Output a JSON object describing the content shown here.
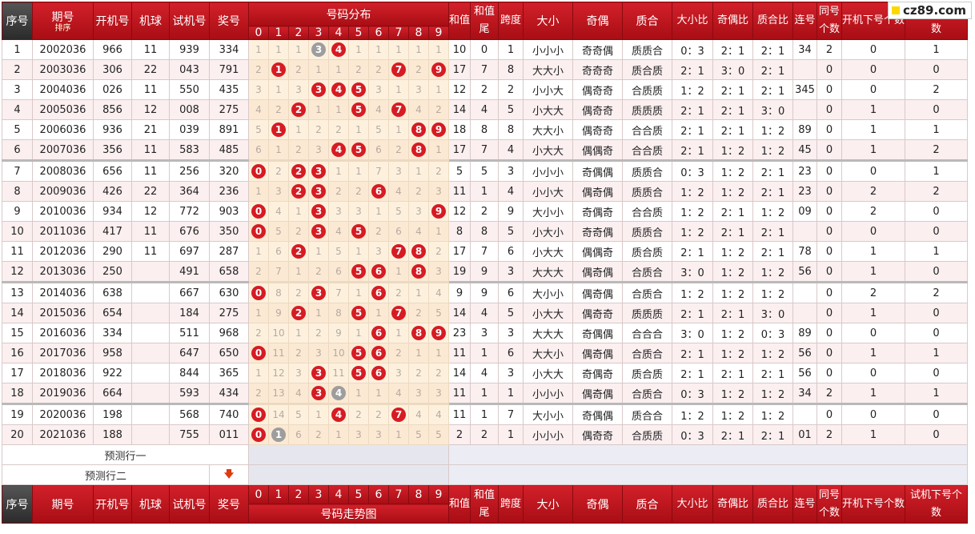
{
  "logo": "cz89.com",
  "header": {
    "seq": "序号",
    "period": "期号",
    "sort": "排序",
    "open": "开机号",
    "machine": "机球",
    "trial": "试机号",
    "prize": "奖号",
    "dist": "号码分布",
    "digits": [
      "0",
      "1",
      "2",
      "3",
      "4",
      "5",
      "6",
      "7",
      "8",
      "9"
    ],
    "sum": "和值",
    "sum_tail": "和值尾",
    "span": "跨度",
    "size": "大小",
    "parity": "奇偶",
    "prime": "质合",
    "size_ratio": "大小比",
    "parity_ratio": "奇偶比",
    "prime_ratio": "质合比",
    "consec": "连号",
    "same": "同号个数",
    "open_next": "开机下号个数",
    "trial_next": "试机下号个数",
    "trend": "号码走势图"
  },
  "rows": [
    {
      "seq": "1",
      "period": "2002036",
      "open": "966",
      "machine": "11",
      "trial": "939",
      "prize": "334",
      "dist": [
        {
          "v": "1"
        },
        {
          "v": "1"
        },
        {
          "v": "1"
        },
        {
          "v": "3",
          "b": "gray"
        },
        {
          "v": "4",
          "b": "red"
        },
        {
          "v": "1"
        },
        {
          "v": "1"
        },
        {
          "v": "1"
        },
        {
          "v": "1"
        },
        {
          "v": "1"
        }
      ],
      "sum": "10",
      "sum_tail": "0",
      "span": "1",
      "size": "小小小",
      "parity": "奇奇偶",
      "prime": "质质合",
      "size_ratio": "0：3",
      "parity_ratio": "2：1",
      "prime_ratio": "2：1",
      "consec": "34",
      "same": "2",
      "open_next": "0",
      "trial_next": "1"
    },
    {
      "seq": "2",
      "period": "2003036",
      "open": "306",
      "machine": "22",
      "trial": "043",
      "prize": "791",
      "dist": [
        {
          "v": "2"
        },
        {
          "v": "1",
          "b": "red"
        },
        {
          "v": "2"
        },
        {
          "v": "1"
        },
        {
          "v": "1"
        },
        {
          "v": "2"
        },
        {
          "v": "2"
        },
        {
          "v": "7",
          "b": "red"
        },
        {
          "v": "2"
        },
        {
          "v": "9",
          "b": "red"
        }
      ],
      "sum": "17",
      "sum_tail": "7",
      "span": "8",
      "size": "大大小",
      "parity": "奇奇奇",
      "prime": "质合质",
      "size_ratio": "2：1",
      "parity_ratio": "3：0",
      "prime_ratio": "2：1",
      "consec": "",
      "same": "0",
      "open_next": "0",
      "trial_next": "0"
    },
    {
      "seq": "3",
      "period": "2004036",
      "open": "026",
      "machine": "11",
      "trial": "550",
      "prize": "435",
      "dist": [
        {
          "v": "3"
        },
        {
          "v": "1"
        },
        {
          "v": "3"
        },
        {
          "v": "3",
          "b": "red"
        },
        {
          "v": "4",
          "b": "red"
        },
        {
          "v": "5",
          "b": "red"
        },
        {
          "v": "3"
        },
        {
          "v": "1"
        },
        {
          "v": "3"
        },
        {
          "v": "1"
        }
      ],
      "sum": "12",
      "sum_tail": "2",
      "span": "2",
      "size": "小小大",
      "parity": "偶奇奇",
      "prime": "合质质",
      "size_ratio": "1：2",
      "parity_ratio": "2：1",
      "prime_ratio": "2：1",
      "consec": "345",
      "same": "0",
      "open_next": "0",
      "trial_next": "2"
    },
    {
      "seq": "4",
      "period": "2005036",
      "open": "856",
      "machine": "12",
      "trial": "008",
      "prize": "275",
      "dist": [
        {
          "v": "4"
        },
        {
          "v": "2"
        },
        {
          "v": "2",
          "b": "red"
        },
        {
          "v": "1"
        },
        {
          "v": "1"
        },
        {
          "v": "5",
          "b": "red"
        },
        {
          "v": "4"
        },
        {
          "v": "7",
          "b": "red"
        },
        {
          "v": "4"
        },
        {
          "v": "2"
        }
      ],
      "sum": "14",
      "sum_tail": "4",
      "span": "5",
      "size": "小大大",
      "parity": "偶奇奇",
      "prime": "质质质",
      "size_ratio": "2：1",
      "parity_ratio": "2：1",
      "prime_ratio": "3：0",
      "consec": "",
      "same": "0",
      "open_next": "1",
      "trial_next": "0"
    },
    {
      "seq": "5",
      "period": "2006036",
      "open": "936",
      "machine": "21",
      "trial": "039",
      "prize": "891",
      "dist": [
        {
          "v": "5"
        },
        {
          "v": "1",
          "b": "red"
        },
        {
          "v": "1"
        },
        {
          "v": "2"
        },
        {
          "v": "2"
        },
        {
          "v": "1"
        },
        {
          "v": "5"
        },
        {
          "v": "1"
        },
        {
          "v": "8",
          "b": "red"
        },
        {
          "v": "9",
          "b": "red"
        }
      ],
      "sum": "18",
      "sum_tail": "8",
      "span": "8",
      "size": "大大小",
      "parity": "偶奇奇",
      "prime": "合合质",
      "size_ratio": "2：1",
      "parity_ratio": "2：1",
      "prime_ratio": "1：2",
      "consec": "89",
      "same": "0",
      "open_next": "1",
      "trial_next": "1"
    },
    {
      "seq": "6",
      "period": "2007036",
      "open": "356",
      "machine": "11",
      "trial": "583",
      "prize": "485",
      "dist": [
        {
          "v": "6"
        },
        {
          "v": "1"
        },
        {
          "v": "2"
        },
        {
          "v": "3"
        },
        {
          "v": "4",
          "b": "red"
        },
        {
          "v": "5",
          "b": "red"
        },
        {
          "v": "6"
        },
        {
          "v": "2"
        },
        {
          "v": "8",
          "b": "red"
        },
        {
          "v": "1"
        }
      ],
      "sum": "17",
      "sum_tail": "7",
      "span": "4",
      "size": "小大大",
      "parity": "偶偶奇",
      "prime": "合合质",
      "size_ratio": "2：1",
      "parity_ratio": "1：2",
      "prime_ratio": "1：2",
      "consec": "45",
      "same": "0",
      "open_next": "1",
      "trial_next": "2"
    },
    {
      "seq": "7",
      "period": "2008036",
      "open": "656",
      "machine": "11",
      "trial": "256",
      "prize": "320",
      "dist": [
        {
          "v": "0",
          "b": "red"
        },
        {
          "v": "2"
        },
        {
          "v": "2",
          "b": "red"
        },
        {
          "v": "3",
          "b": "red"
        },
        {
          "v": "1"
        },
        {
          "v": "1"
        },
        {
          "v": "7"
        },
        {
          "v": "3"
        },
        {
          "v": "1"
        },
        {
          "v": "2"
        }
      ],
      "sum": "5",
      "sum_tail": "5",
      "span": "3",
      "size": "小小小",
      "parity": "奇偶偶",
      "prime": "质质合",
      "size_ratio": "0：3",
      "parity_ratio": "1：2",
      "prime_ratio": "2：1",
      "consec": "23",
      "same": "0",
      "open_next": "0",
      "trial_next": "1",
      "sep": true
    },
    {
      "seq": "8",
      "period": "2009036",
      "open": "426",
      "machine": "22",
      "trial": "364",
      "prize": "236",
      "dist": [
        {
          "v": "1"
        },
        {
          "v": "3"
        },
        {
          "v": "2",
          "b": "red"
        },
        {
          "v": "3",
          "b": "red"
        },
        {
          "v": "2"
        },
        {
          "v": "2"
        },
        {
          "v": "6",
          "b": "red"
        },
        {
          "v": "4"
        },
        {
          "v": "2"
        },
        {
          "v": "3"
        }
      ],
      "sum": "11",
      "sum_tail": "1",
      "span": "4",
      "size": "小小大",
      "parity": "偶奇偶",
      "prime": "质质合",
      "size_ratio": "1：2",
      "parity_ratio": "1：2",
      "prime_ratio": "2：1",
      "consec": "23",
      "same": "0",
      "open_next": "2",
      "trial_next": "2"
    },
    {
      "seq": "9",
      "period": "2010036",
      "open": "934",
      "machine": "12",
      "trial": "772",
      "prize": "903",
      "dist": [
        {
          "v": "0",
          "b": "red"
        },
        {
          "v": "4"
        },
        {
          "v": "1"
        },
        {
          "v": "3",
          "b": "red"
        },
        {
          "v": "3"
        },
        {
          "v": "3"
        },
        {
          "v": "1"
        },
        {
          "v": "5"
        },
        {
          "v": "3"
        },
        {
          "v": "9",
          "b": "red"
        }
      ],
      "sum": "12",
      "sum_tail": "2",
      "span": "9",
      "size": "大小小",
      "parity": "奇偶奇",
      "prime": "合合质",
      "size_ratio": "1：2",
      "parity_ratio": "2：1",
      "prime_ratio": "1：2",
      "consec": "09",
      "same": "0",
      "open_next": "2",
      "trial_next": "0"
    },
    {
      "seq": "10",
      "period": "2011036",
      "open": "417",
      "machine": "11",
      "trial": "676",
      "prize": "350",
      "dist": [
        {
          "v": "0",
          "b": "red"
        },
        {
          "v": "5"
        },
        {
          "v": "2"
        },
        {
          "v": "3",
          "b": "red"
        },
        {
          "v": "4"
        },
        {
          "v": "5",
          "b": "red"
        },
        {
          "v": "2"
        },
        {
          "v": "6"
        },
        {
          "v": "4"
        },
        {
          "v": "1"
        }
      ],
      "sum": "8",
      "sum_tail": "8",
      "span": "5",
      "size": "小大小",
      "parity": "奇奇偶",
      "prime": "质质合",
      "size_ratio": "1：2",
      "parity_ratio": "2：1",
      "prime_ratio": "2：1",
      "consec": "",
      "same": "0",
      "open_next": "0",
      "trial_next": "0"
    },
    {
      "seq": "11",
      "period": "2012036",
      "open": "290",
      "machine": "11",
      "trial": "697",
      "prize": "287",
      "dist": [
        {
          "v": "1"
        },
        {
          "v": "6"
        },
        {
          "v": "2",
          "b": "red"
        },
        {
          "v": "1"
        },
        {
          "v": "5"
        },
        {
          "v": "1"
        },
        {
          "v": "3"
        },
        {
          "v": "7",
          "b": "red"
        },
        {
          "v": "8",
          "b": "red"
        },
        {
          "v": "2"
        }
      ],
      "sum": "17",
      "sum_tail": "7",
      "span": "6",
      "size": "小大大",
      "parity": "偶偶奇",
      "prime": "质合质",
      "size_ratio": "2：1",
      "parity_ratio": "1：2",
      "prime_ratio": "2：1",
      "consec": "78",
      "same": "0",
      "open_next": "1",
      "trial_next": "1"
    },
    {
      "seq": "12",
      "period": "2013036",
      "open": "250",
      "machine": "",
      "trial": "491",
      "prize": "658",
      "dist": [
        {
          "v": "2"
        },
        {
          "v": "7"
        },
        {
          "v": "1"
        },
        {
          "v": "2"
        },
        {
          "v": "6"
        },
        {
          "v": "5",
          "b": "red"
        },
        {
          "v": "6",
          "b": "red"
        },
        {
          "v": "1"
        },
        {
          "v": "8",
          "b": "red"
        },
        {
          "v": "3"
        }
      ],
      "sum": "19",
      "sum_tail": "9",
      "span": "3",
      "size": "大大大",
      "parity": "偶奇偶",
      "prime": "合质合",
      "size_ratio": "3：0",
      "parity_ratio": "1：2",
      "prime_ratio": "1：2",
      "consec": "56",
      "same": "0",
      "open_next": "1",
      "trial_next": "0"
    },
    {
      "seq": "13",
      "period": "2014036",
      "open": "638",
      "machine": "",
      "trial": "667",
      "prize": "630",
      "dist": [
        {
          "v": "0",
          "b": "red"
        },
        {
          "v": "8"
        },
        {
          "v": "2"
        },
        {
          "v": "3",
          "b": "red"
        },
        {
          "v": "7"
        },
        {
          "v": "1"
        },
        {
          "v": "6",
          "b": "red"
        },
        {
          "v": "2"
        },
        {
          "v": "1"
        },
        {
          "v": "4"
        }
      ],
      "sum": "9",
      "sum_tail": "9",
      "span": "6",
      "size": "大小小",
      "parity": "偶奇偶",
      "prime": "合质合",
      "size_ratio": "1：2",
      "parity_ratio": "1：2",
      "prime_ratio": "1：2",
      "consec": "",
      "same": "0",
      "open_next": "2",
      "trial_next": "2",
      "sep": true
    },
    {
      "seq": "14",
      "period": "2015036",
      "open": "654",
      "machine": "",
      "trial": "184",
      "prize": "275",
      "dist": [
        {
          "v": "1"
        },
        {
          "v": "9"
        },
        {
          "v": "2",
          "b": "red"
        },
        {
          "v": "1"
        },
        {
          "v": "8"
        },
        {
          "v": "5",
          "b": "red"
        },
        {
          "v": "1"
        },
        {
          "v": "7",
          "b": "red"
        },
        {
          "v": "2"
        },
        {
          "v": "5"
        }
      ],
      "sum": "14",
      "sum_tail": "4",
      "span": "5",
      "size": "小大大",
      "parity": "偶奇奇",
      "prime": "质质质",
      "size_ratio": "2：1",
      "parity_ratio": "2：1",
      "prime_ratio": "3：0",
      "consec": "",
      "same": "0",
      "open_next": "1",
      "trial_next": "0"
    },
    {
      "seq": "15",
      "period": "2016036",
      "open": "334",
      "machine": "",
      "trial": "511",
      "prize": "968",
      "dist": [
        {
          "v": "2"
        },
        {
          "v": "10"
        },
        {
          "v": "1"
        },
        {
          "v": "2"
        },
        {
          "v": "9"
        },
        {
          "v": "1"
        },
        {
          "v": "6",
          "b": "red"
        },
        {
          "v": "1"
        },
        {
          "v": "8",
          "b": "red"
        },
        {
          "v": "9",
          "b": "red"
        }
      ],
      "sum": "23",
      "sum_tail": "3",
      "span": "3",
      "size": "大大大",
      "parity": "奇偶偶",
      "prime": "合合合",
      "size_ratio": "3：0",
      "parity_ratio": "1：2",
      "prime_ratio": "0：3",
      "consec": "89",
      "same": "0",
      "open_next": "0",
      "trial_next": "0"
    },
    {
      "seq": "16",
      "period": "2017036",
      "open": "958",
      "machine": "",
      "trial": "647",
      "prize": "650",
      "dist": [
        {
          "v": "0",
          "b": "red"
        },
        {
          "v": "11"
        },
        {
          "v": "2"
        },
        {
          "v": "3"
        },
        {
          "v": "10"
        },
        {
          "v": "5",
          "b": "red"
        },
        {
          "v": "6",
          "b": "red"
        },
        {
          "v": "2"
        },
        {
          "v": "1"
        },
        {
          "v": "1"
        }
      ],
      "sum": "11",
      "sum_tail": "1",
      "span": "6",
      "size": "大大小",
      "parity": "偶奇偶",
      "prime": "合质合",
      "size_ratio": "2：1",
      "parity_ratio": "1：2",
      "prime_ratio": "1：2",
      "consec": "56",
      "same": "0",
      "open_next": "1",
      "trial_next": "1"
    },
    {
      "seq": "17",
      "period": "2018036",
      "open": "922",
      "machine": "",
      "trial": "844",
      "prize": "365",
      "dist": [
        {
          "v": "1"
        },
        {
          "v": "12"
        },
        {
          "v": "3"
        },
        {
          "v": "3",
          "b": "red"
        },
        {
          "v": "11"
        },
        {
          "v": "5",
          "b": "red"
        },
        {
          "v": "6",
          "b": "red"
        },
        {
          "v": "3"
        },
        {
          "v": "2"
        },
        {
          "v": "2"
        }
      ],
      "sum": "14",
      "sum_tail": "4",
      "span": "3",
      "size": "小大大",
      "parity": "奇偶奇",
      "prime": "质合质",
      "size_ratio": "2：1",
      "parity_ratio": "2：1",
      "prime_ratio": "2：1",
      "consec": "56",
      "same": "0",
      "open_next": "0",
      "trial_next": "0"
    },
    {
      "seq": "18",
      "period": "2019036",
      "open": "664",
      "machine": "",
      "trial": "593",
      "prize": "434",
      "dist": [
        {
          "v": "2"
        },
        {
          "v": "13"
        },
        {
          "v": "4"
        },
        {
          "v": "3",
          "b": "red"
        },
        {
          "v": "4",
          "b": "gray"
        },
        {
          "v": "1"
        },
        {
          "v": "1"
        },
        {
          "v": "4"
        },
        {
          "v": "3"
        },
        {
          "v": "3"
        }
      ],
      "sum": "11",
      "sum_tail": "1",
      "span": "1",
      "size": "小小小",
      "parity": "偶奇偶",
      "prime": "合质合",
      "size_ratio": "0：3",
      "parity_ratio": "1：2",
      "prime_ratio": "1：2",
      "consec": "34",
      "same": "2",
      "open_next": "1",
      "trial_next": "1"
    },
    {
      "seq": "19",
      "period": "2020036",
      "open": "198",
      "machine": "",
      "trial": "568",
      "prize": "740",
      "dist": [
        {
          "v": "0",
          "b": "red"
        },
        {
          "v": "14"
        },
        {
          "v": "5"
        },
        {
          "v": "1"
        },
        {
          "v": "4",
          "b": "red"
        },
        {
          "v": "2"
        },
        {
          "v": "2"
        },
        {
          "v": "7",
          "b": "red"
        },
        {
          "v": "4"
        },
        {
          "v": "4"
        }
      ],
      "sum": "11",
      "sum_tail": "1",
      "span": "7",
      "size": "大小小",
      "parity": "奇偶偶",
      "prime": "质合合",
      "size_ratio": "1：2",
      "parity_ratio": "1：2",
      "prime_ratio": "1：2",
      "consec": "",
      "same": "0",
      "open_next": "0",
      "trial_next": "0",
      "sep": true
    },
    {
      "seq": "20",
      "period": "2021036",
      "open": "188",
      "machine": "",
      "trial": "755",
      "prize": "011",
      "dist": [
        {
          "v": "0",
          "b": "red"
        },
        {
          "v": "1",
          "b": "gray"
        },
        {
          "v": "6"
        },
        {
          "v": "2"
        },
        {
          "v": "1"
        },
        {
          "v": "3"
        },
        {
          "v": "3"
        },
        {
          "v": "1"
        },
        {
          "v": "5"
        },
        {
          "v": "5"
        }
      ],
      "sum": "2",
      "sum_tail": "2",
      "span": "1",
      "size": "小小小",
      "parity": "偶奇奇",
      "prime": "合质质",
      "size_ratio": "0：3",
      "parity_ratio": "2：1",
      "prime_ratio": "2：1",
      "consec": "01",
      "same": "2",
      "open_next": "1",
      "trial_next": "0"
    }
  ],
  "predict": {
    "row1": "预测行一",
    "row2": "预测行二"
  },
  "colors": {
    "header_red": "#c8121b",
    "ball_red": "#d61b23",
    "ball_gray": "#9d9d9d",
    "dist_bg": "#fdf1de"
  }
}
